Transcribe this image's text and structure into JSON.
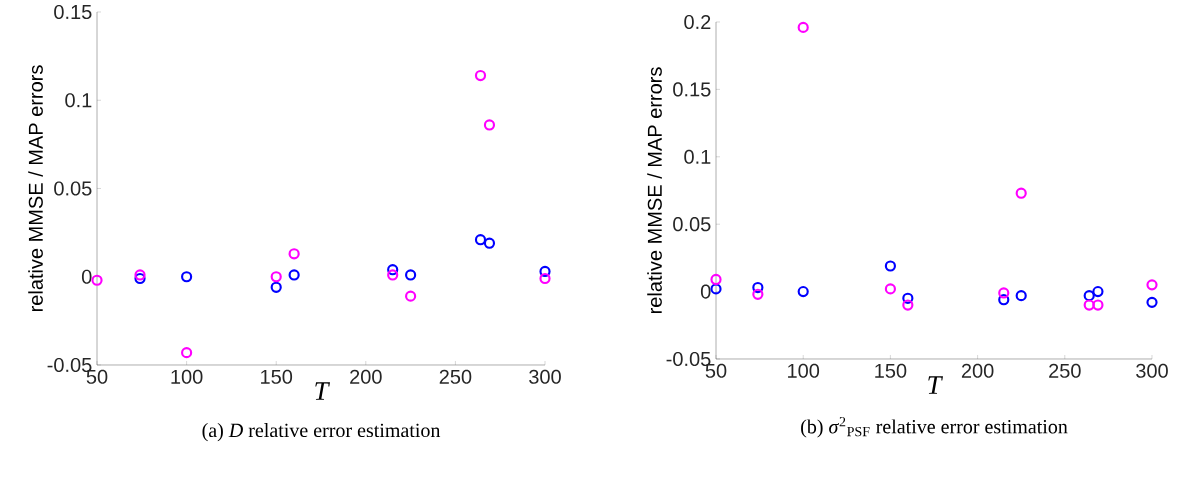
{
  "chart_data": [
    {
      "type": "scatter",
      "title": "(a) *D* relative error estimation",
      "xlabel": "T",
      "ylabel": "relative MMSE / MAP errors",
      "marker": "circle",
      "x": [
        50,
        74,
        100,
        150,
        160,
        215,
        225,
        264,
        269,
        300
      ],
      "series": [
        {
          "color": "#0000ff",
          "values": [
            null,
            -0.001,
            0,
            -0.006,
            0.001,
            0.004,
            0.001,
            0.021,
            0.019,
            0.003
          ]
        },
        {
          "color": "#ff00ff",
          "values": [
            -0.002,
            0.001,
            -0.043,
            0,
            0.013,
            0.001,
            -0.011,
            0.114,
            0.086,
            -0.001
          ]
        }
      ],
      "xlim": [
        50,
        300
      ],
      "ylim": [
        -0.05,
        0.15
      ],
      "xticks": [
        50,
        100,
        150,
        200,
        250,
        300
      ],
      "yticks": [
        -0.05,
        0,
        0.05,
        0.1,
        0.15
      ]
    },
    {
      "type": "scatter",
      "title": "(b) *σ*$^{2}$$_{PSF}$ relative error estimation",
      "xlabel": "T",
      "ylabel": "relative MMSE / MAP errors",
      "marker": "circle",
      "x": [
        50,
        74,
        100,
        150,
        160,
        215,
        225,
        264,
        269,
        300
      ],
      "series": [
        {
          "color": "#0000ff",
          "values": [
            0.002,
            0.003,
            0,
            0.019,
            -0.005,
            -0.006,
            -0.003,
            -0.003,
            0,
            -0.008
          ]
        },
        {
          "color": "#ff00ff",
          "values": [
            0.009,
            -0.002,
            0.196,
            0.002,
            -0.01,
            -0.001,
            0.073,
            -0.01,
            -0.01,
            0.005
          ]
        }
      ],
      "xlim": [
        50,
        300
      ],
      "ylim": [
        -0.05,
        0.2
      ],
      "xticks": [
        50,
        100,
        150,
        200,
        250,
        300
      ],
      "yticks": [
        -0.05,
        0,
        0.05,
        0.1,
        0.15,
        0.2
      ]
    }
  ]
}
